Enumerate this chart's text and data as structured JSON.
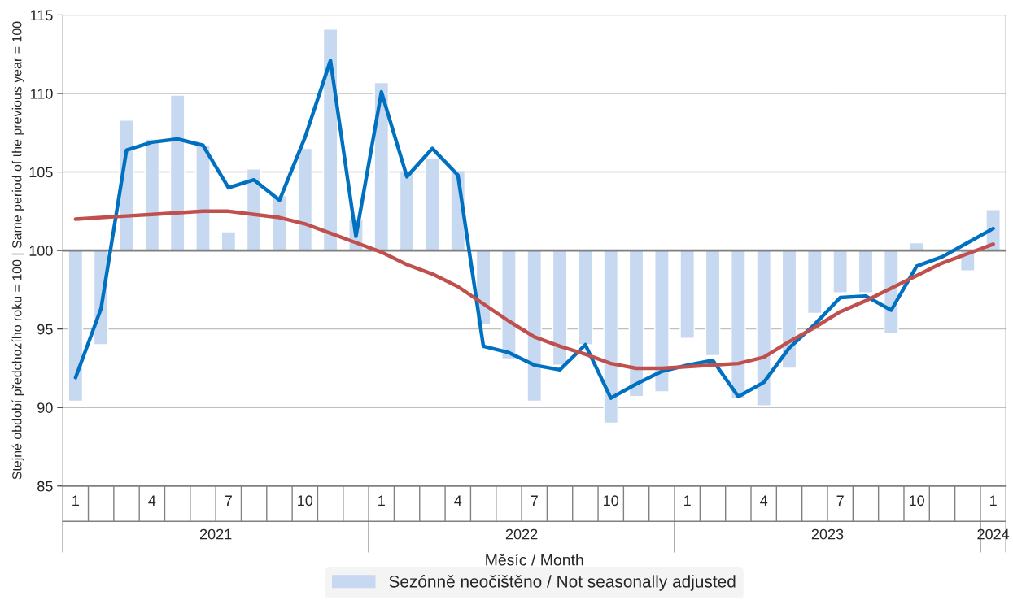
{
  "chart_data": {
    "type": "bar",
    "ylabel": "Stejné období předchozího roku = 100 | Same period of the previous year = 100",
    "xlabel": "Měsíc / Month",
    "categories": [
      "1",
      null,
      null,
      "4",
      null,
      null,
      "7",
      null,
      null,
      "10",
      null,
      null,
      "1",
      null,
      null,
      "4",
      null,
      null,
      "7",
      null,
      null,
      "10",
      null,
      null,
      "1",
      null,
      null,
      "4",
      null,
      null,
      "7",
      null,
      null,
      "10",
      null,
      null,
      "1"
    ],
    "annotations": [
      "2021",
      "2022",
      "2023",
      "2024"
    ],
    "series": [
      {
        "name": "Sezónně neočištěno / Not seasonally adjusted",
        "color": "#c6d9f1",
        "base": [
          100,
          100,
          100,
          100,
          100,
          100,
          100,
          100,
          100,
          100,
          100,
          100,
          100,
          100,
          100,
          100,
          100,
          100,
          100,
          100,
          100,
          100,
          100,
          100,
          100,
          100,
          100,
          100,
          100,
          100,
          100,
          100,
          100,
          100,
          null,
          100,
          100
        ],
        "values": [
          -9.6,
          -6.0,
          8.3,
          7.1,
          9.9,
          6.7,
          1.2,
          5.2,
          3.5,
          6.5,
          14.1,
          2.0,
          10.7,
          5.1,
          5.9,
          5.1,
          -4.7,
          -6.9,
          -9.6,
          -7.3,
          -6.0,
          -11.0,
          -9.3,
          -9.0,
          -5.6,
          -6.7,
          -9.4,
          -9.9,
          -7.5,
          -4.0,
          -2.7,
          -2.7,
          -5.3,
          0.5,
          null,
          -1.3,
          2.6
        ]
      },
      {
        "type": "line",
        "color": "#0070c0",
        "values": [
          91.9,
          96.3,
          106.4,
          106.9,
          107.1,
          106.7,
          104.0,
          104.5,
          103.2,
          107.2,
          112.1,
          100.9,
          110.1,
          104.7,
          106.5,
          104.8,
          93.9,
          93.5,
          92.7,
          92.4,
          94.0,
          90.6,
          91.5,
          92.3,
          92.7,
          93.0,
          90.7,
          91.6,
          93.8,
          95.3,
          97.0,
          97.1,
          96.2,
          99.0,
          99.6,
          100.5,
          101.4
        ]
      },
      {
        "type": "line",
        "color": "#c0504d",
        "values": [
          102.0,
          102.1,
          102.2,
          102.3,
          102.4,
          102.5,
          102.5,
          102.3,
          102.1,
          101.7,
          101.1,
          100.5,
          99.9,
          99.1,
          98.5,
          97.7,
          96.6,
          95.5,
          94.5,
          93.9,
          93.4,
          92.8,
          92.5,
          92.5,
          92.6,
          92.7,
          92.8,
          93.2,
          94.2,
          95.1,
          96.1,
          96.8,
          97.6,
          98.4,
          99.2,
          99.8,
          100.4
        ]
      }
    ],
    "ylim": [
      85,
      115
    ],
    "yticks": [
      85,
      90,
      95,
      100,
      105,
      110,
      115
    ],
    "ref_lines": [
      {
        "axis": "y",
        "value": 100,
        "color": "#808080"
      }
    ],
    "grid": "y",
    "legend": "bottom"
  }
}
